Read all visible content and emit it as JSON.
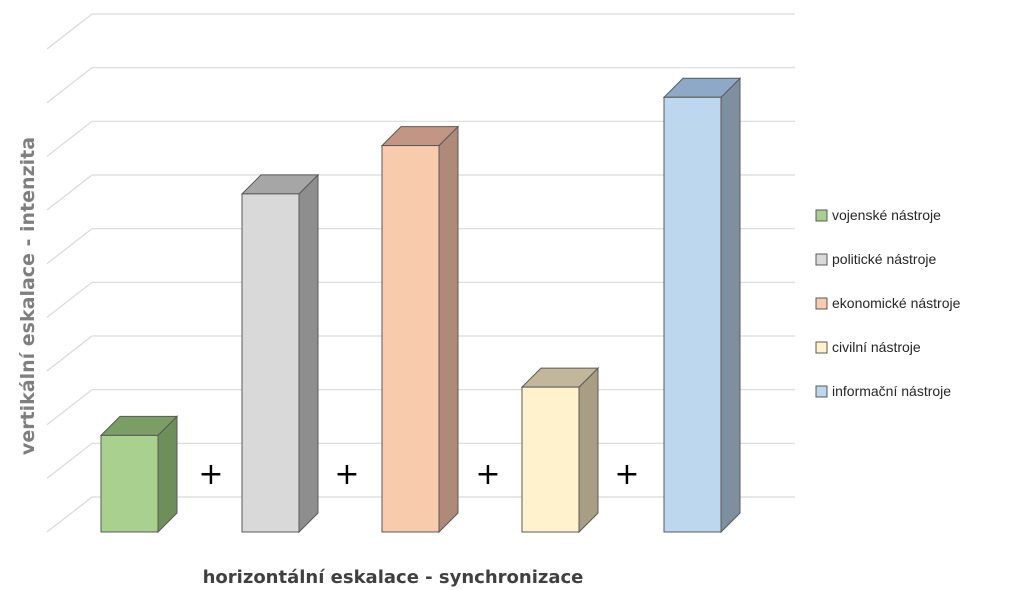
{
  "chart_data": {
    "type": "bar",
    "categories": [
      "vojenské nástroje",
      "politické nástroje",
      "ekonomické nástroje",
      "civilní nástroje",
      "informační nástroje"
    ],
    "values": [
      2,
      7,
      8,
      3,
      9
    ],
    "ylabel": "vertikální eskalace - intenzita",
    "xlabel": "horizontální eskalace - synchronizace",
    "ylim": [
      0,
      10
    ],
    "grid": true,
    "legend_position": "right",
    "separator_symbol": "+",
    "colors": {
      "front": [
        "#a9d08e",
        "#d9d9d9",
        "#f8cbad",
        "#fff2cc",
        "#bdd7ee"
      ],
      "side": [
        "#6e8e5a",
        "#8e8e8e",
        "#b08a78",
        "#a89e84",
        "#7e8fa0"
      ],
      "top": [
        "#7a9e64",
        "#a6a6a6",
        "#c29584",
        "#c2b79a",
        "#8ea9c8"
      ]
    }
  }
}
